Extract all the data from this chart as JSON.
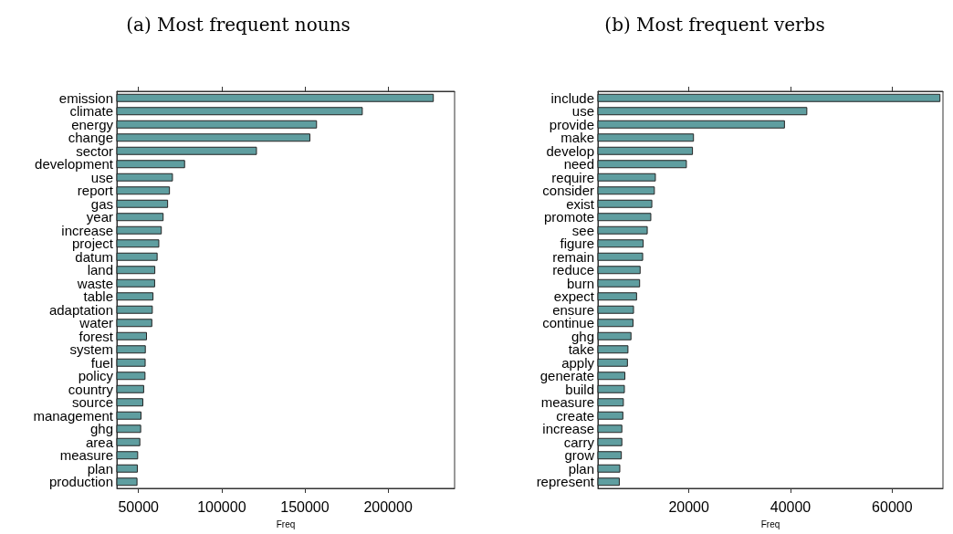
{
  "chart_data": [
    {
      "type": "bar",
      "orientation": "horizontal",
      "title": "(a) Most frequent nouns",
      "xlabel": "Freq",
      "color": "#5f9ea0",
      "grid": false,
      "xlim": [
        37000,
        240000
      ],
      "xticks": [
        50000,
        100000,
        150000,
        200000
      ],
      "categories": [
        "emission",
        "climate",
        "energy",
        "change",
        "sector",
        "development",
        "use",
        "report",
        "gas",
        "year",
        "increase",
        "project",
        "datum",
        "land",
        "waste",
        "table",
        "adaptation",
        "water",
        "forest",
        "system",
        "fuel",
        "policy",
        "country",
        "source",
        "management",
        "ghg",
        "area",
        "measure",
        "plan",
        "production"
      ],
      "values": [
        227500,
        184800,
        157300,
        153300,
        121200,
        78000,
        70700,
        68900,
        67800,
        65100,
        64000,
        62500,
        61500,
        60100,
        60000,
        59000,
        58600,
        58300,
        55100,
        54400,
        54300,
        54200,
        53400,
        52900,
        51800,
        51600,
        51100,
        49800,
        49600,
        49400
      ]
    },
    {
      "type": "bar",
      "orientation": "horizontal",
      "title": "(b) Most frequent verbs",
      "xlabel": "Freq",
      "color": "#5f9ea0",
      "grid": false,
      "xlim": [
        2100,
        70000
      ],
      "xticks": [
        20000,
        40000,
        60000
      ],
      "categories": [
        "include",
        "use",
        "provide",
        "make",
        "develop",
        "need",
        "require",
        "consider",
        "exist",
        "promote",
        "see",
        "figure",
        "remain",
        "reduce",
        "burn",
        "expect",
        "ensure",
        "continue",
        "ghg",
        "take",
        "apply",
        "generate",
        "build",
        "measure",
        "create",
        "increase",
        "carry",
        "grow",
        "plan",
        "represent"
      ],
      "values": [
        69500,
        43300,
        38900,
        21000,
        20800,
        19600,
        13500,
        13300,
        12800,
        12600,
        11900,
        11100,
        11000,
        10500,
        10400,
        9800,
        9200,
        9100,
        8700,
        8100,
        8000,
        7500,
        7400,
        7200,
        7100,
        6900,
        6900,
        6800,
        6500,
        6400
      ]
    }
  ]
}
